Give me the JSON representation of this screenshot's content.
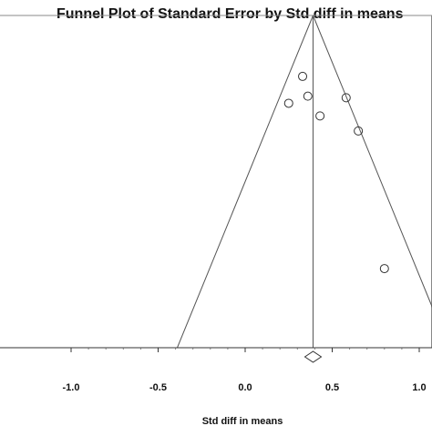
{
  "chart_data": {
    "type": "scatter",
    "title": "Funnel Plot of Standard Error by Std diff in means",
    "xlabel": "Std diff in means",
    "ylabel": "",
    "x_ticks": [
      "-1.0",
      "-0.5",
      "0.0",
      "0.5",
      "1.0"
    ],
    "x_tick_values": [
      -1.0,
      -0.5,
      0.0,
      0.5,
      1.0
    ],
    "xlim": [
      -1.5,
      1.0
    ],
    "ylim": [
      0.0,
      0.42
    ],
    "y_reversed": true,
    "y_tick_labels_visible": false,
    "pooled_estimate": 0.39,
    "funnel_base_left": -0.39,
    "funnel_base_right": 1.17,
    "points": [
      {
        "x": 0.33,
        "y": 0.077
      },
      {
        "x": 0.36,
        "y": 0.102
      },
      {
        "x": 0.25,
        "y": 0.111
      },
      {
        "x": 0.43,
        "y": 0.127
      },
      {
        "x": 0.58,
        "y": 0.104
      },
      {
        "x": 0.65,
        "y": 0.146
      },
      {
        "x": 0.8,
        "y": 0.32
      }
    ],
    "summary_diamond": {
      "center": 0.39
    },
    "grid": false,
    "legend": "none"
  }
}
